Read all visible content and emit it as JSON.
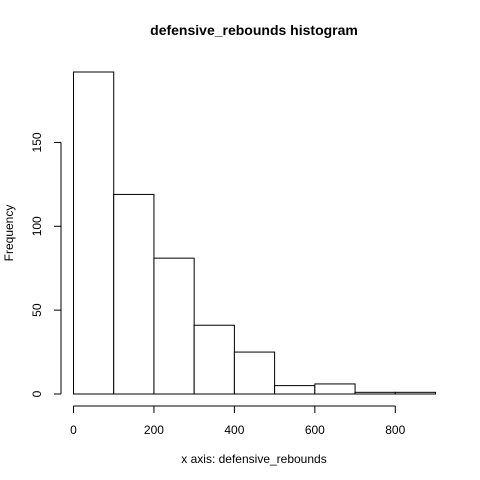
{
  "chart_data": {
    "type": "bar",
    "title": "defensive_rebounds histogram",
    "xlabel": "x axis: defensive_rebounds",
    "ylabel": "Frequency",
    "bins": [
      {
        "x0": 0,
        "x1": 100,
        "count": 192
      },
      {
        "x0": 100,
        "x1": 200,
        "count": 119
      },
      {
        "x0": 200,
        "x1": 300,
        "count": 81
      },
      {
        "x0": 300,
        "x1": 400,
        "count": 41
      },
      {
        "x0": 400,
        "x1": 500,
        "count": 25
      },
      {
        "x0": 500,
        "x1": 600,
        "count": 5
      },
      {
        "x0": 600,
        "x1": 700,
        "count": 6
      },
      {
        "x0": 700,
        "x1": 800,
        "count": 1
      },
      {
        "x0": 800,
        "x1": 900,
        "count": 1
      }
    ],
    "x_ticks": [
      0,
      200,
      400,
      600,
      800
    ],
    "y_ticks": [
      0,
      50,
      100,
      150
    ],
    "xlim": [
      0,
      900
    ],
    "ylim": [
      0,
      192
    ],
    "grid": false
  }
}
